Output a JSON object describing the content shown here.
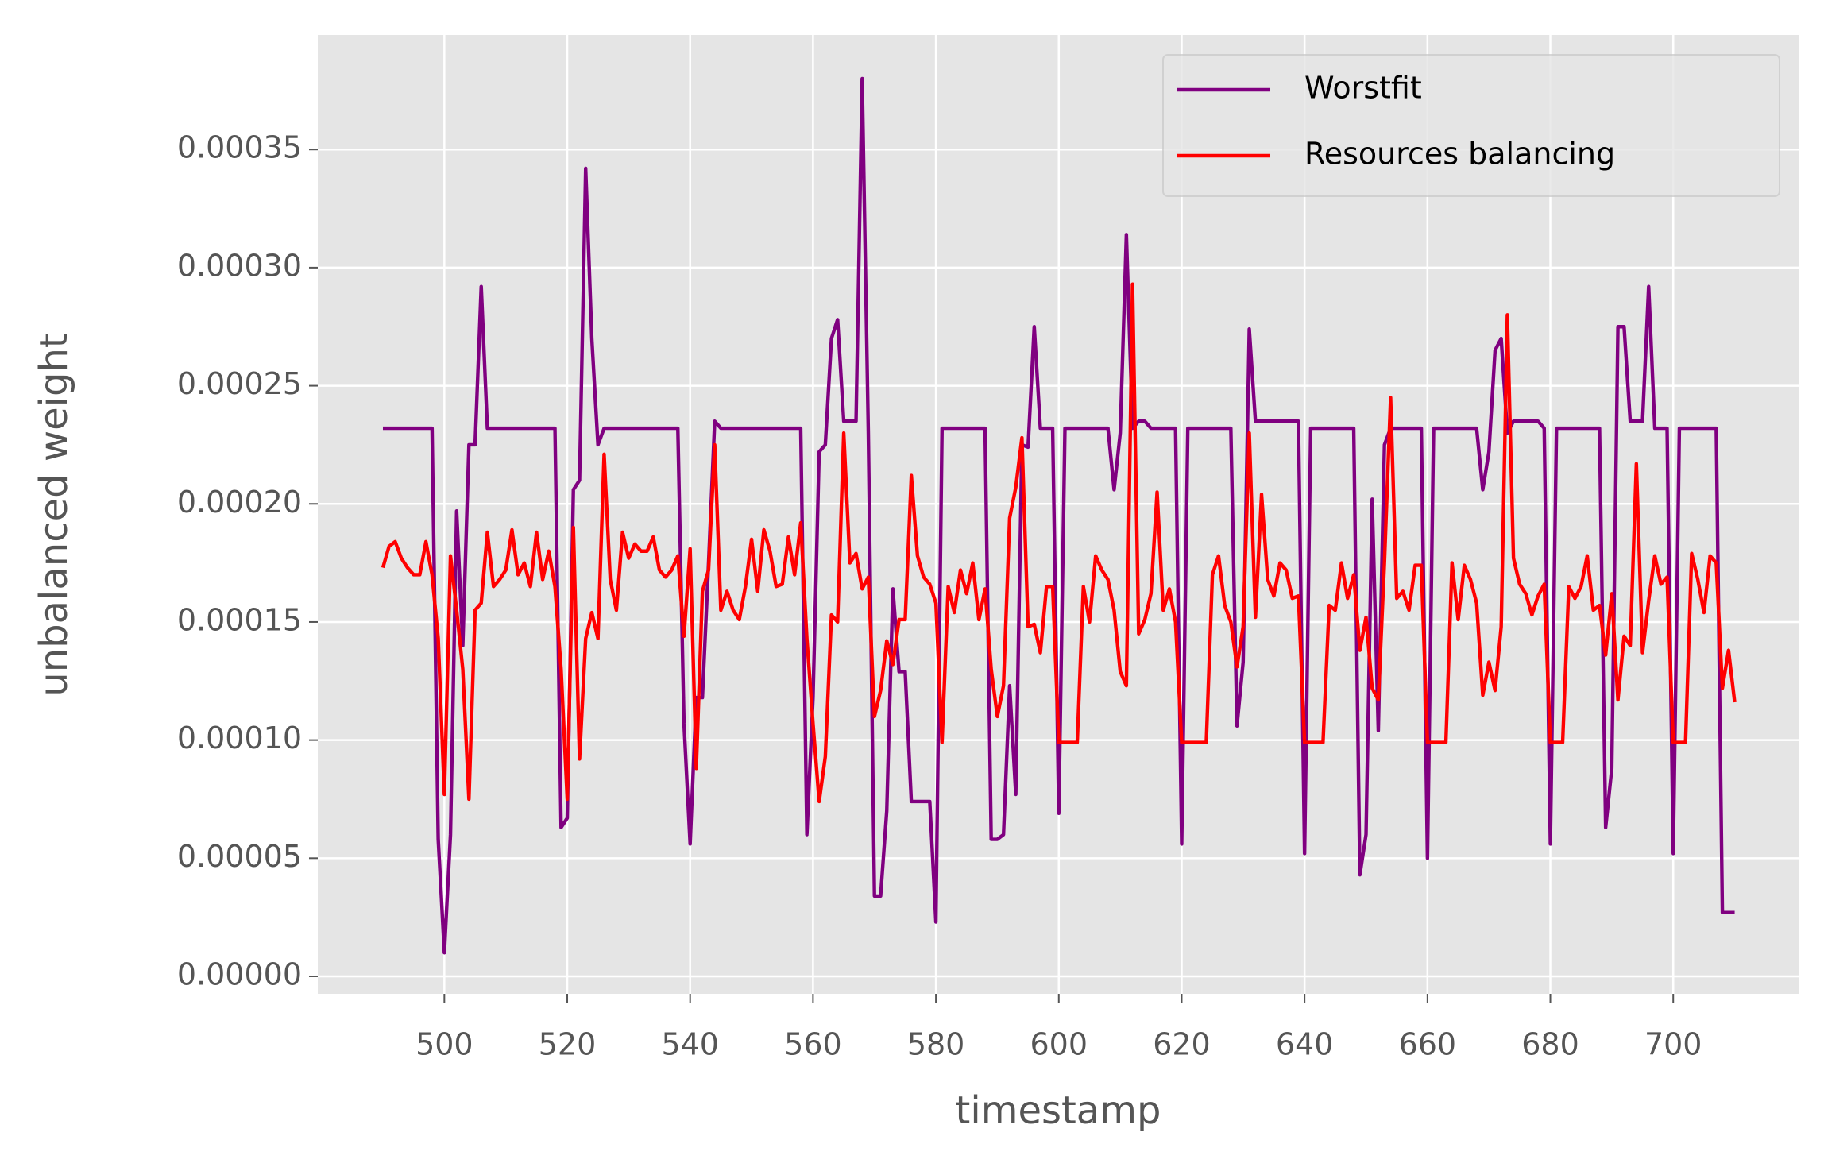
{
  "chart_data": {
    "type": "line",
    "x_label": "timestamp",
    "y_label": "unbalanced weight",
    "xlim": [
      479.4,
      720.4
    ],
    "ylim": [
      -7.4e-06,
      0.0003985
    ],
    "xticks": [
      500,
      520,
      540,
      560,
      580,
      600,
      620,
      640,
      660,
      680,
      700
    ],
    "yticks": [
      {
        "value": 0,
        "label": "0.00000"
      },
      {
        "value": 5e-05,
        "label": "0.00005"
      },
      {
        "value": 0.0001,
        "label": "0.00010"
      },
      {
        "value": 0.00015,
        "label": "0.00015"
      },
      {
        "value": 0.0002,
        "label": "0.00020"
      },
      {
        "value": 0.00025,
        "label": "0.00025"
      },
      {
        "value": 0.0003,
        "label": "0.00030"
      },
      {
        "value": 0.00035,
        "label": "0.00035"
      }
    ],
    "grid": true,
    "legend": "upper right",
    "x": [
      490,
      491,
      492,
      493,
      494,
      495,
      496,
      497,
      498,
      499,
      500,
      501,
      502,
      503,
      504,
      505,
      506,
      507,
      508,
      509,
      510,
      511,
      512,
      513,
      514,
      515,
      516,
      517,
      518,
      519,
      520,
      521,
      522,
      523,
      524,
      525,
      526,
      527,
      528,
      529,
      530,
      531,
      532,
      533,
      534,
      535,
      536,
      537,
      538,
      539,
      540,
      541,
      542,
      543,
      544,
      545,
      546,
      547,
      548,
      549,
      550,
      551,
      552,
      553,
      554,
      555,
      556,
      557,
      558,
      559,
      560,
      561,
      562,
      563,
      564,
      565,
      566,
      567,
      568,
      569,
      570,
      571,
      572,
      573,
      574,
      575,
      576,
      577,
      578,
      579,
      580,
      581,
      582,
      583,
      584,
      585,
      586,
      587,
      588,
      589,
      590,
      591,
      592,
      593,
      594,
      595,
      596,
      597,
      598,
      599,
      600,
      601,
      602,
      603,
      604,
      605,
      606,
      607,
      608,
      609,
      610,
      611,
      612,
      613,
      614,
      615,
      616,
      617,
      618,
      619,
      620,
      621,
      622,
      623,
      624,
      625,
      626,
      627,
      628,
      629,
      630,
      631,
      632,
      633,
      634,
      635,
      636,
      637,
      638,
      639,
      640,
      641,
      642,
      643,
      644,
      645,
      646,
      647,
      648,
      649,
      650,
      651,
      652,
      653,
      654,
      655,
      656,
      657,
      658,
      659,
      660,
      661,
      662,
      663,
      664,
      665,
      666,
      667,
      668,
      669,
      670,
      671,
      672,
      673,
      674,
      675,
      676,
      677,
      678,
      679,
      680,
      681,
      682,
      683,
      684,
      685,
      686,
      687,
      688,
      689,
      690,
      691,
      692,
      693,
      694,
      695,
      696,
      697,
      698,
      699,
      700,
      701,
      702,
      703,
      704,
      705,
      706,
      707,
      708,
      709,
      710
    ],
    "series": [
      {
        "name": "Worstfit",
        "color": "#800080",
        "values": [
          0.000232,
          0.000232,
          0.000232,
          0.000232,
          0.000232,
          0.000232,
          0.000232,
          0.000232,
          0.000232,
          5.8e-05,
          1e-05,
          6e-05,
          0.000197,
          0.00014,
          0.000225,
          0.000225,
          0.000292,
          0.000232,
          0.000232,
          0.000232,
          0.000232,
          0.000232,
          0.000232,
          0.000232,
          0.000232,
          0.000232,
          0.000232,
          0.000232,
          0.000232,
          6.3e-05,
          6.7e-05,
          0.000206,
          0.00021,
          0.000342,
          0.00027,
          0.000225,
          0.000232,
          0.000232,
          0.000232,
          0.000232,
          0.000232,
          0.000232,
          0.000232,
          0.000232,
          0.000232,
          0.000232,
          0.000232,
          0.000232,
          0.000232,
          0.000107,
          5.6e-05,
          0.000118,
          0.000118,
          0.000175,
          0.000235,
          0.000232,
          0.000232,
          0.000232,
          0.000232,
          0.000232,
          0.000232,
          0.000232,
          0.000232,
          0.000232,
          0.000232,
          0.000232,
          0.000232,
          0.000232,
          0.000232,
          6e-05,
          0.000118,
          0.000222,
          0.000225,
          0.00027,
          0.000278,
          0.000235,
          0.000235,
          0.000235,
          0.00038,
          0.00023,
          3.4e-05,
          3.4e-05,
          7e-05,
          0.000164,
          0.000129,
          0.000129,
          7.4e-05,
          7.4e-05,
          7.4e-05,
          7.4e-05,
          2.3e-05,
          0.000232,
          0.000232,
          0.000232,
          0.000232,
          0.000232,
          0.000232,
          0.000232,
          0.000232,
          5.8e-05,
          5.8e-05,
          6e-05,
          0.000123,
          7.7e-05,
          0.000225,
          0.000224,
          0.000275,
          0.000232,
          0.000232,
          0.000232,
          6.9e-05,
          0.000232,
          0.000232,
          0.000232,
          0.000232,
          0.000232,
          0.000232,
          0.000232,
          0.000232,
          0.000206,
          0.00023,
          0.000314,
          0.000232,
          0.000235,
          0.000235,
          0.000232,
          0.000232,
          0.000232,
          0.000232,
          0.000232,
          5.6e-05,
          0.000232,
          0.000232,
          0.000232,
          0.000232,
          0.000232,
          0.000232,
          0.000232,
          0.000232,
          0.000106,
          0.000133,
          0.000274,
          0.000235,
          0.000235,
          0.000235,
          0.000235,
          0.000235,
          0.000235,
          0.000235,
          0.000235,
          5.2e-05,
          0.000232,
          0.000232,
          0.000232,
          0.000232,
          0.000232,
          0.000232,
          0.000232,
          0.000232,
          4.3e-05,
          6e-05,
          0.000202,
          0.000104,
          0.000225,
          0.000232,
          0.000232,
          0.000232,
          0.000232,
          0.000232,
          0.000232,
          5e-05,
          0.000232,
          0.000232,
          0.000232,
          0.000232,
          0.000232,
          0.000232,
          0.000232,
          0.000232,
          0.000206,
          0.000222,
          0.000265,
          0.00027,
          0.00023,
          0.000235,
          0.000235,
          0.000235,
          0.000235,
          0.000235,
          0.000232,
          5.6e-05,
          0.000232,
          0.000232,
          0.000232,
          0.000232,
          0.000232,
          0.000232,
          0.000232,
          0.000232,
          6.3e-05,
          8.8e-05,
          0.000275,
          0.000275,
          0.000235,
          0.000235,
          0.000235,
          0.000292,
          0.000232,
          0.000232,
          0.000232,
          5.2e-05,
          0.000232,
          0.000232,
          0.000232,
          0.000232,
          0.000232,
          0.000232,
          0.000232,
          2.7e-05,
          2.7e-05,
          2.7e-05
        ]
      },
      {
        "name": "Resources balancing",
        "color": "#ff0000",
        "values": [
          0.000173,
          0.000182,
          0.000184,
          0.000177,
          0.000173,
          0.00017,
          0.00017,
          0.000184,
          0.00017,
          0.000143,
          7.7e-05,
          0.000178,
          0.000155,
          0.00013,
          7.5e-05,
          0.000155,
          0.000158,
          0.000188,
          0.000165,
          0.000168,
          0.000172,
          0.000189,
          0.00017,
          0.000175,
          0.000165,
          0.000188,
          0.000168,
          0.00018,
          0.000165,
          0.00013,
          7.5e-05,
          0.00019,
          9.2e-05,
          0.000143,
          0.000154,
          0.000143,
          0.000221,
          0.000168,
          0.000155,
          0.000188,
          0.000177,
          0.000183,
          0.00018,
          0.00018,
          0.000186,
          0.000172,
          0.000169,
          0.000172,
          0.000178,
          0.000144,
          0.000181,
          8.8e-05,
          0.000163,
          0.000172,
          0.000225,
          0.000155,
          0.000163,
          0.000155,
          0.000151,
          0.000165,
          0.000185,
          0.000163,
          0.000189,
          0.00018,
          0.000165,
          0.000166,
          0.000186,
          0.00017,
          0.000192,
          0.000143,
          0.000107,
          7.4e-05,
          9.3e-05,
          0.000153,
          0.00015,
          0.00023,
          0.000175,
          0.000179,
          0.000164,
          0.000169,
          0.00011,
          0.000121,
          0.000142,
          0.000132,
          0.000151,
          0.000151,
          0.000212,
          0.000178,
          0.000169,
          0.000166,
          0.000158,
          9.9e-05,
          0.000165,
          0.000154,
          0.000172,
          0.000162,
          0.000175,
          0.000151,
          0.000164,
          0.00013,
          0.00011,
          0.000123,
          0.000194,
          0.000207,
          0.000228,
          0.000148,
          0.000149,
          0.000137,
          0.000165,
          0.000165,
          9.9e-05,
          9.9e-05,
          9.9e-05,
          9.9e-05,
          0.000165,
          0.00015,
          0.000178,
          0.000172,
          0.000168,
          0.000155,
          0.000129,
          0.000123,
          0.000293,
          0.000145,
          0.000151,
          0.000162,
          0.000205,
          0.000155,
          0.000164,
          0.00015,
          9.9e-05,
          9.9e-05,
          9.9e-05,
          9.9e-05,
          9.9e-05,
          0.00017,
          0.000178,
          0.000157,
          0.00015,
          0.000131,
          0.000148,
          0.00023,
          0.000152,
          0.000204,
          0.000168,
          0.000161,
          0.000175,
          0.000172,
          0.00016,
          0.000161,
          9.9e-05,
          9.9e-05,
          9.9e-05,
          9.9e-05,
          0.000157,
          0.000155,
          0.000175,
          0.00016,
          0.00017,
          0.000138,
          0.000152,
          0.000122,
          0.000117,
          0.000175,
          0.000245,
          0.00016,
          0.000163,
          0.000155,
          0.000174,
          0.000174,
          9.9e-05,
          9.9e-05,
          9.9e-05,
          9.9e-05,
          0.000175,
          0.000151,
          0.000174,
          0.000168,
          0.000158,
          0.000119,
          0.000133,
          0.000121,
          0.000148,
          0.00028,
          0.000177,
          0.000166,
          0.000162,
          0.000153,
          0.000161,
          0.000166,
          9.9e-05,
          9.9e-05,
          9.9e-05,
          0.000165,
          0.00016,
          0.000165,
          0.000178,
          0.000155,
          0.000157,
          0.000136,
          0.000162,
          0.000117,
          0.000144,
          0.00014,
          0.000217,
          0.000137,
          0.000159,
          0.000178,
          0.000166,
          0.000169,
          9.9e-05,
          9.9e-05,
          9.9e-05,
          0.000179,
          0.000168,
          0.000154,
          0.000178,
          0.000175,
          0.000122,
          0.000138,
          0.000116
        ]
      }
    ]
  }
}
